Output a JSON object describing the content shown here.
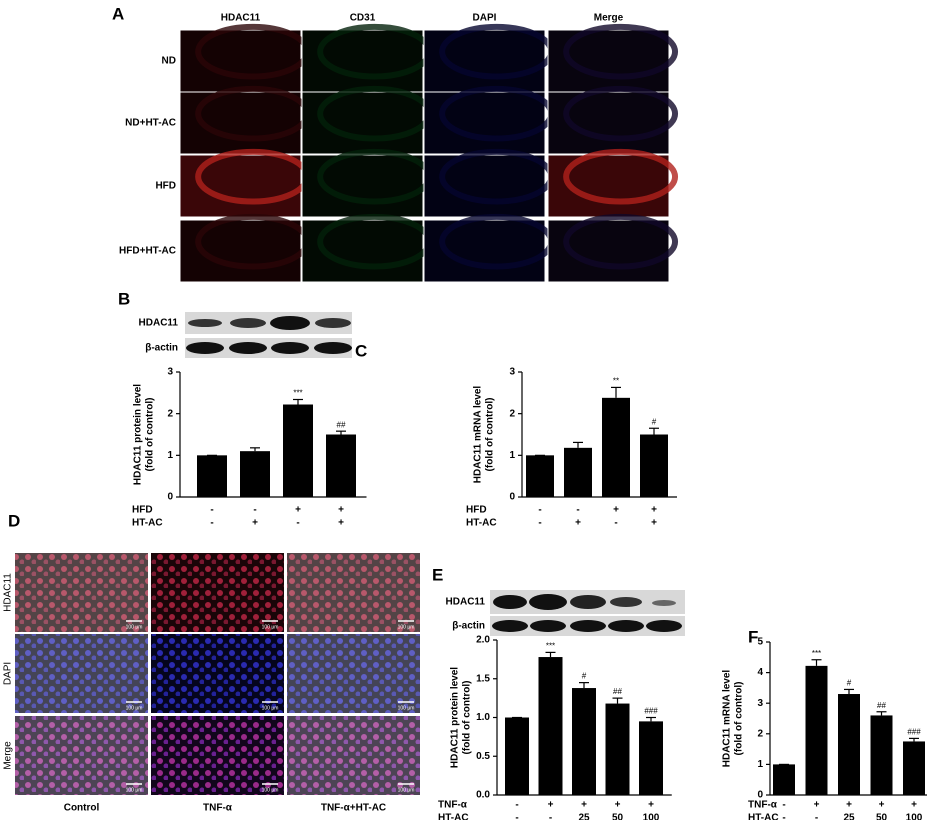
{
  "panels": {
    "A": {
      "label": "A",
      "columns": [
        "HDAC11",
        "CD31",
        "DAPI",
        "Merge"
      ],
      "rows": [
        "ND",
        "ND+HT-AC",
        "HFD",
        "HFD+HT-AC"
      ]
    },
    "B": {
      "label": "B",
      "blot_labels": [
        "HDAC11",
        "β-actin"
      ]
    },
    "C": {
      "label": "C"
    },
    "D": {
      "label": "D",
      "rows": [
        "HDAC11",
        "DAPI",
        "Merge"
      ],
      "columns": [
        "Control",
        "TNF-α",
        "TNF-α+HT-AC"
      ],
      "scale_bar": "100 μm"
    },
    "E": {
      "label": "E",
      "blot_labels": [
        "HDAC11",
        "β-actin"
      ]
    },
    "F": {
      "label": "F"
    }
  },
  "chart_data": [
    {
      "type": "bar",
      "ylabel": [
        "HDAC11 protein level",
        "(fold of control)"
      ],
      "values": [
        1,
        1.1,
        2.22,
        1.5
      ],
      "errors": [
        0,
        0.08,
        0.12,
        0.08
      ],
      "annotations": [
        null,
        null,
        "***",
        "##"
      ],
      "color": "#000000",
      "ylim": [
        0,
        3
      ],
      "yticks": [
        0,
        1,
        2,
        3
      ],
      "conditions": [
        {
          "name": "HFD",
          "values": [
            "-",
            "-",
            "+",
            "+"
          ]
        },
        {
          "name": "HT-AC",
          "values": [
            "-",
            "+",
            "-",
            "+"
          ]
        }
      ]
    },
    {
      "type": "bar",
      "ylabel": [
        "HDAC11 mRNA level",
        "(fold of control)"
      ],
      "values": [
        1,
        1.18,
        2.38,
        1.5
      ],
      "errors": [
        0,
        0.13,
        0.25,
        0.15
      ],
      "annotations": [
        null,
        null,
        "**",
        "#"
      ],
      "color": "#000000",
      "ylim": [
        0,
        3
      ],
      "yticks": [
        0,
        1,
        2,
        3
      ],
      "conditions": [
        {
          "name": "HFD",
          "values": [
            "-",
            "-",
            "+",
            "+"
          ]
        },
        {
          "name": "HT-AC",
          "values": [
            "-",
            "+",
            "-",
            "+"
          ]
        }
      ]
    },
    {
      "type": "bar",
      "ylabel": [
        "HDAC11 protein level",
        "(fold of control)"
      ],
      "values": [
        1,
        1.78,
        1.38,
        1.18,
        0.95
      ],
      "errors": [
        0,
        0.06,
        0.07,
        0.07,
        0.05
      ],
      "annotations": [
        null,
        "***",
        "#",
        "##",
        "###"
      ],
      "color": "#000000",
      "ylim": [
        0,
        2
      ],
      "yticks": [
        {
          "value": 0,
          "label": "0.0"
        },
        {
          "value": 0.5,
          "label": "0.5"
        },
        {
          "value": 1,
          "label": "1.0"
        },
        {
          "value": 1.5,
          "label": "1.5"
        },
        {
          "value": 2,
          "label": "2.0"
        }
      ],
      "conditions": [
        {
          "name": "TNF-α",
          "values": [
            "-",
            "+",
            "+",
            "+",
            "+"
          ]
        },
        {
          "name": "HT-AC",
          "values": [
            "-",
            "-",
            "25",
            "50",
            "100"
          ]
        }
      ]
    },
    {
      "type": "bar",
      "ylabel": [
        "HDAC11 mRNA level",
        "(fold of control)"
      ],
      "values": [
        1,
        4.22,
        3.3,
        2.6,
        1.75
      ],
      "errors": [
        0,
        0.2,
        0.15,
        0.12,
        0.1
      ],
      "annotations": [
        null,
        "***",
        "#",
        "##",
        "###"
      ],
      "color": "#000000",
      "ylim": [
        0,
        5
      ],
      "yticks": [
        0,
        1,
        2,
        3,
        4,
        5
      ],
      "conditions": [
        {
          "name": "TNF-α",
          "values": [
            "-",
            "+",
            "+",
            "+",
            "+"
          ]
        },
        {
          "name": "HT-AC",
          "values": [
            "-",
            "-",
            "25",
            "50",
            "100"
          ]
        }
      ]
    }
  ]
}
